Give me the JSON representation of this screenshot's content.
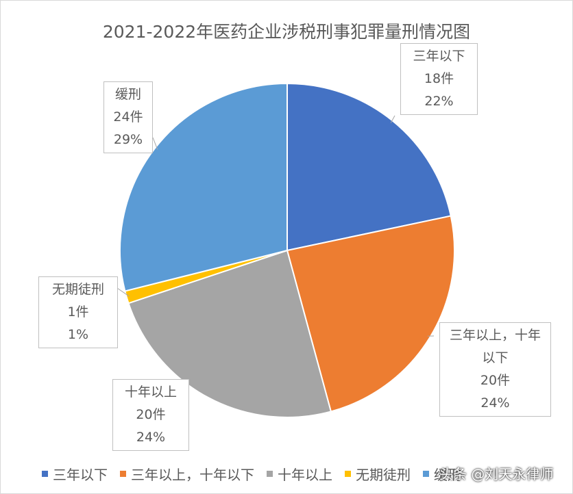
{
  "chart_data": {
    "type": "pie",
    "title": "2021-2022年医药企业涉税刑事犯罪量刑情况图",
    "categories": [
      "三年以下",
      "三年以上，十年以下",
      "十年以上",
      "无期徒刑",
      "缓刑"
    ],
    "values": [
      18,
      20,
      20,
      1,
      24
    ],
    "value_labels": [
      "18件",
      "20件",
      "20件",
      "1件",
      "24件"
    ],
    "percents": [
      22,
      24,
      24,
      1,
      29
    ],
    "percent_labels": [
      "22%",
      "24%",
      "24%",
      "1%",
      "29%"
    ],
    "colors": [
      "#4472c4",
      "#ed7d31",
      "#a5a5a5",
      "#ffc000",
      "#5b9bd5"
    ],
    "legend": "bottom"
  },
  "watermark": "头条 @刘天永律师"
}
